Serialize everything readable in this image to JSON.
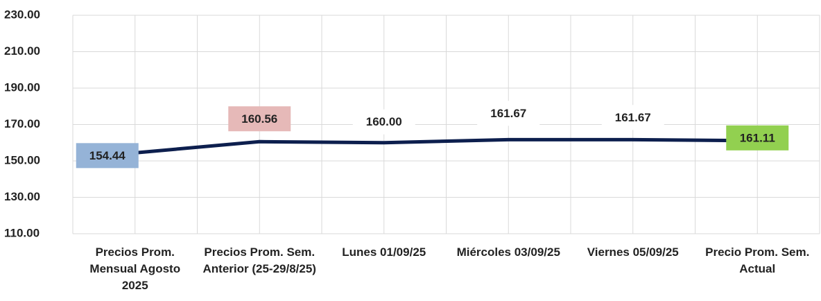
{
  "chart_data": {
    "type": "line",
    "categories": [
      "Precios Prom. Mensual Agosto 2025",
      "Precios Prom. Sem. Anterior (25-29/8/25)",
      "Lunes  01/09/25",
      "Miércoles 03/09/25",
      "Viernes 05/09/25",
      "Precio Prom. Sem. Actual"
    ],
    "series": [
      {
        "color": "#0d1f4e",
        "values": [
          154.44,
          160.56,
          160.0,
          161.67,
          161.67,
          161.11
        ],
        "value_labels": [
          "154.44",
          "160.56",
          "160.00",
          "161.67",
          "161.67",
          "161.11"
        ],
        "value_label_colors": [
          "#95b3d7",
          "#e6b9b8",
          "#ffffff",
          "#ffffff",
          "#ffffff",
          "#92d050"
        ]
      }
    ],
    "ylim": [
      110,
      230
    ],
    "yticks": [
      {
        "value": 110,
        "label": "110.00"
      },
      {
        "value": 130,
        "label": "130.00"
      },
      {
        "value": 150,
        "label": "150.00"
      },
      {
        "value": 170,
        "label": "170.00"
      },
      {
        "value": 190,
        "label": "190.00"
      },
      {
        "value": 210,
        "label": "210.00"
      },
      {
        "value": 230,
        "label": "230.00"
      }
    ],
    "grid": true
  }
}
